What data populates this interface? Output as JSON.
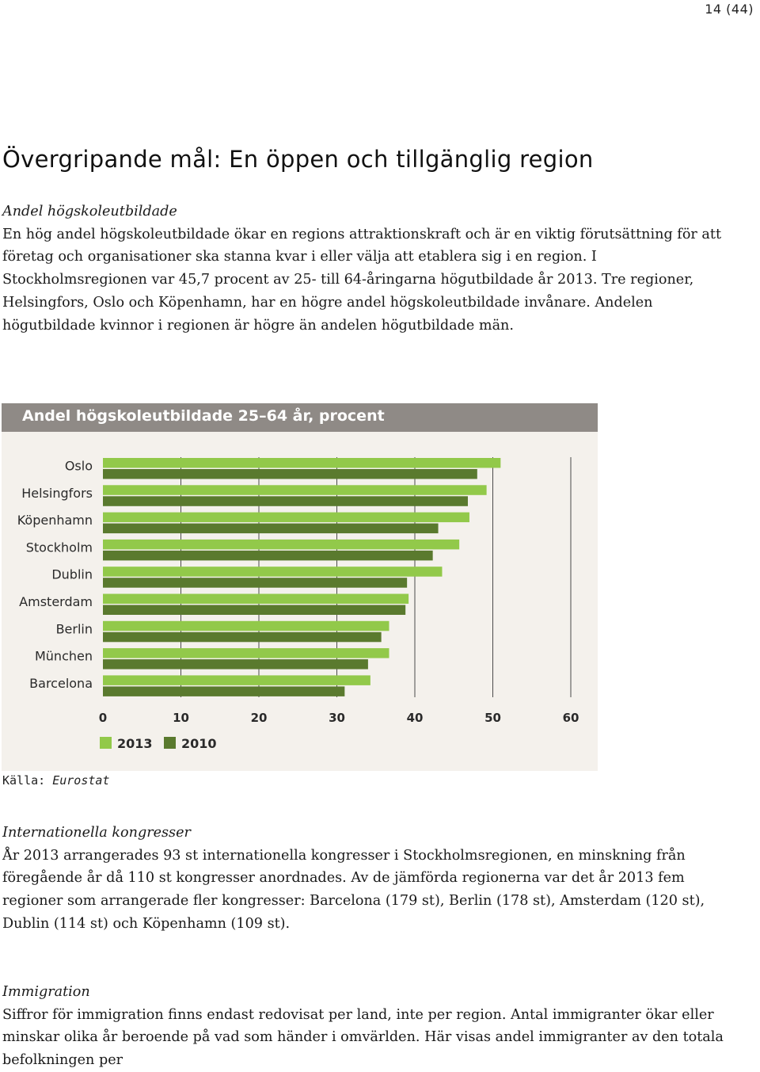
{
  "page_number": "14 (44)",
  "heading": "Övergripande mål: En öppen och tillgänglig region",
  "sections": {
    "hogskole": {
      "title": "Andel högskoleutbildade",
      "body": "En hög andel högskoleutbildade ökar en regions attraktionskraft och är en viktig förutsättning för att företag och organisationer ska stanna kvar i eller välja att etablera sig i en region. I Stockholmsregionen var 45,7 procent av 25- till 64-åringarna högutbildade år 2013. Tre regioner, Helsingfors, Oslo och Köpenhamn, har en högre andel högskoleutbildade invånare. Andelen högutbildade kvinnor i regionen är högre än andelen högutbildade män."
    },
    "kongresser": {
      "title": "Internationella kongresser",
      "body": "År 2013 arrangerades 93 st internationella kongresser i Stockholmsregionen, en minskning från föregående år då 110 st kongresser anordnades. Av de jämförda regionerna var det år 2013 fem regioner som arrangerade fler kongresser: Barcelona (179 st), Berlin (178 st), Amsterdam (120 st), Dublin (114 st) och Köpenhamn (109 st)."
    },
    "immigration": {
      "title": "Immigration",
      "body": "Siffror för immigration finns endast redovisat per land, inte per region. Antal immigranter ökar eller minskar olika år beroende på vad som händer i omvärlden. Här visas andel immigranter av den totala befolkningen per"
    }
  },
  "source": {
    "label": "Källa:",
    "name": "Eurostat"
  },
  "chart_data": {
    "type": "bar",
    "orientation": "horizontal",
    "title": "Andel högskoleutbildade 25–64 år, procent",
    "categories": [
      "Oslo",
      "Helsingfors",
      "Köpenhamn",
      "Stockholm",
      "Dublin",
      "Amsterdam",
      "Berlin",
      "München",
      "Barcelona"
    ],
    "series": [
      {
        "name": "2013",
        "color": "#92c94a",
        "values": [
          51.0,
          49.2,
          47.0,
          45.7,
          43.5,
          39.2,
          36.7,
          36.7,
          34.3
        ]
      },
      {
        "name": "2010",
        "color": "#5a7a2e",
        "values": [
          48.0,
          46.8,
          43.0,
          42.3,
          39.0,
          38.8,
          35.7,
          34.0,
          31.0
        ]
      }
    ],
    "xlim": [
      0,
      60
    ],
    "xticks": [
      0,
      10,
      20,
      30,
      40,
      50,
      60
    ],
    "grid": true,
    "legend_position": "bottom-left"
  }
}
